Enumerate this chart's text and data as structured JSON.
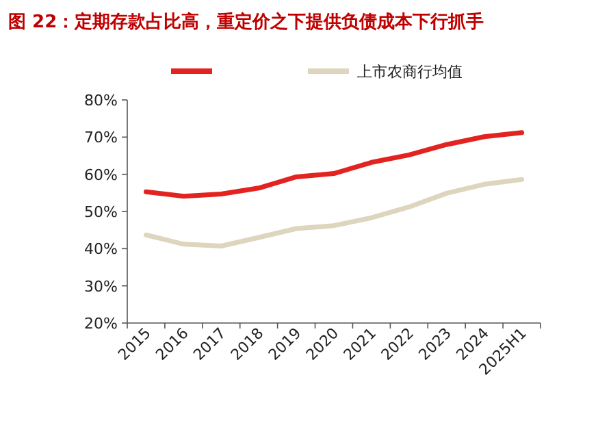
{
  "chart_data": {
    "type": "line",
    "title": "图 22：定期存款占比高，重定价之下提供负债成本下行抓手",
    "categories": [
      "2015",
      "2016",
      "2017",
      "2018",
      "2019",
      "2020",
      "2021",
      "2022",
      "2023",
      "2024",
      "2025H1"
    ],
    "series": [
      {
        "color": "#e3231f",
        "values": [
          55.3,
          54.1,
          54.7,
          56.3,
          59.3,
          60.2,
          63.2,
          65.2,
          68.0,
          70.1,
          71.2
        ]
      },
      {
        "name": "上市农商行均值",
        "color": "#ddd5bd",
        "values": [
          43.7,
          41.2,
          40.7,
          43.0,
          45.4,
          46.2,
          48.3,
          51.2,
          54.9,
          57.3,
          58.6
        ]
      }
    ],
    "ylim": [
      20,
      80
    ],
    "yticks": [
      {
        "value": 20,
        "label": "20%"
      },
      {
        "value": 30,
        "label": "30%"
      },
      {
        "value": 40,
        "label": "40%"
      },
      {
        "value": 50,
        "label": "50%"
      },
      {
        "value": 60,
        "label": "60%"
      },
      {
        "value": 70,
        "label": "70%"
      },
      {
        "value": 80,
        "label": "80%"
      }
    ],
    "legend": "top",
    "grid": false,
    "marker": "none",
    "line_style": "solid"
  }
}
